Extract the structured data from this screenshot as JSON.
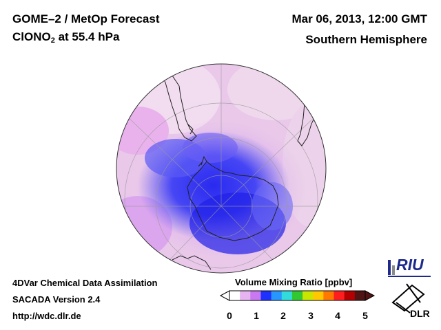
{
  "header": {
    "title_line1": "GOME–2 / MetOp Forecast",
    "species": "ClONO",
    "species_sub": "2",
    "level": " at 55.4 hPa",
    "date": "Mar 06, 2013, 12:00 GMT",
    "region": "Southern Hemisphere"
  },
  "footer": {
    "line1": "4DVar Chemical Data Assimilation",
    "line2": "SACADA Version 2.4",
    "line3": "http://wdc.dlr.de"
  },
  "colorbar": {
    "title": "Volume Mixing Ratio [ppbv]",
    "ticks": [
      "0",
      "1",
      "2",
      "3",
      "4",
      "5"
    ],
    "colors": [
      "#ffffff",
      "#e6b4f0",
      "#c878f0",
      "#1e32ff",
      "#2896ff",
      "#32dcdc",
      "#32c832",
      "#c8e600",
      "#ffc800",
      "#ff7800",
      "#ff1e1e",
      "#b40000",
      "#501414"
    ]
  },
  "logos": {
    "riu": "RIU",
    "dlr": "DLR"
  }
}
